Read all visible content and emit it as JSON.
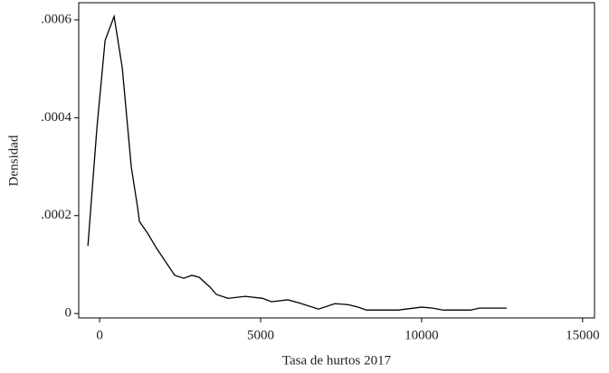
{
  "chart_data": {
    "type": "line",
    "x_label": "Tasa de hurtos 2017",
    "y_label": "Densidad",
    "color": "#000000",
    "x": [
      -365,
      -84,
      169,
      449,
      702,
      983,
      1180,
      1236,
      1489,
      1770,
      2331,
      2612,
      2865,
      3090,
      3427,
      3624,
      3989,
      4522,
      5056,
      5337,
      5843,
      6180,
      6798,
      7303,
      7725,
      8034,
      8287,
      9270,
      10000,
      10337,
      10674,
      11517,
      11798,
      12640
    ],
    "values": [
      0.000138,
      0.00038,
      0.000558,
      0.000607,
      0.000502,
      0.000299,
      0.000216,
      0.000188,
      0.000164,
      0.000133,
      7.8e-05,
      7.2e-05,
      7.8e-05,
      7.4e-05,
      5.4e-05,
      3.9e-05,
      3.1e-05,
      3.5e-05,
      3.1e-05,
      2.4e-05,
      2.8e-05,
      2.2e-05,
      9e-06,
      2e-05,
      1.8e-05,
      1.3e-05,
      7e-06,
      7e-06,
      1.3e-05,
      1.1e-05,
      7e-06,
      7e-06,
      1.1e-05,
      1.1e-05
    ],
    "xlim": [
      -650,
      15370
    ],
    "ylim": [
      -9e-06,
      0.000635
    ],
    "xticks": [
      0,
      5000,
      10000,
      15000
    ],
    "yticks": [
      0,
      {
        "value": 0.0002,
        "label": ".0002"
      },
      {
        "value": 0.0004,
        "label": ".0004"
      },
      {
        "value": 0.0006,
        "label": ".0006"
      }
    ],
    "grid": false
  }
}
